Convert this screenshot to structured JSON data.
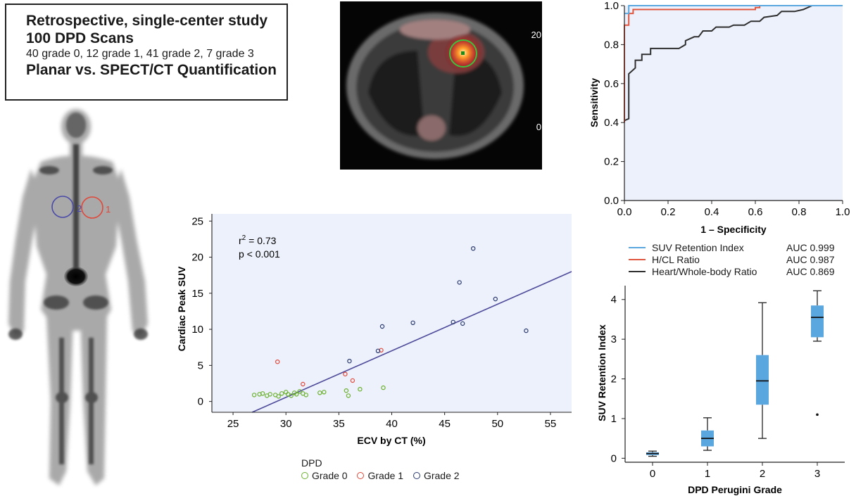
{
  "summary": {
    "line1": "Retrospective, single-center study",
    "line2": "100 DPD Scans",
    "line3": "40 grade 0, 12 grade 1, 41 grade 2, 7 grade 3",
    "line4": "Planar vs. SPECT/CT Quantification"
  },
  "bone_scan": {
    "roi_labels": [
      "2",
      "1"
    ],
    "roi_colors": [
      "#4a4aa8",
      "#e0483a"
    ]
  },
  "ct_image": {
    "scale_max": "20",
    "scale_min": "0",
    "roi_color": "#3cc23c"
  },
  "chart_data": [
    {
      "type": "line",
      "ylabel": "Sensitivity",
      "xlabel": "1 – Specificity",
      "xlim": [
        0,
        1
      ],
      "ylim": [
        0,
        1
      ],
      "x_ticks": [
        "0.0",
        "0.2",
        "0.4",
        "0.6",
        "0.8",
        "1.0"
      ],
      "y_ticks": [
        "0.0",
        "0.2",
        "0.4",
        "0.6",
        "0.8",
        "1.0"
      ],
      "legend_placement": "below",
      "series": [
        {
          "name": "SUV Retention Index",
          "auc": "AUC 0.999",
          "color": "#5aa6df",
          "points": [
            [
              0,
              0.96
            ],
            [
              0.02,
              0.96
            ],
            [
              0.02,
              1.0
            ],
            [
              1,
              1.0
            ]
          ]
        },
        {
          "name": "H/CL Ratio",
          "auc": "AUC 0.987",
          "color": "#e0563e",
          "points": [
            [
              0,
              0.4
            ],
            [
              0,
              0.9
            ],
            [
              0.02,
              0.9
            ],
            [
              0.02,
              0.96
            ],
            [
              0.04,
              0.96
            ],
            [
              0.04,
              0.98
            ],
            [
              0.6,
              0.98
            ],
            [
              0.6,
              0.99
            ],
            [
              0.62,
              0.99
            ],
            [
              0.62,
              1.0
            ],
            [
              1,
              1.0
            ]
          ]
        },
        {
          "name": "Heart/Whole-body Ratio",
          "auc": "AUC 0.869",
          "color": "#2f2f2f",
          "points": [
            [
              0,
              0.41
            ],
            [
              0.02,
              0.42
            ],
            [
              0.02,
              0.65
            ],
            [
              0.04,
              0.67
            ],
            [
              0.05,
              0.68
            ],
            [
              0.05,
              0.72
            ],
            [
              0.08,
              0.72
            ],
            [
              0.08,
              0.75
            ],
            [
              0.12,
              0.75
            ],
            [
              0.12,
              0.78
            ],
            [
              0.25,
              0.78
            ],
            [
              0.28,
              0.8
            ],
            [
              0.28,
              0.82
            ],
            [
              0.32,
              0.84
            ],
            [
              0.34,
              0.84
            ],
            [
              0.36,
              0.87
            ],
            [
              0.4,
              0.87
            ],
            [
              0.42,
              0.89
            ],
            [
              0.48,
              0.89
            ],
            [
              0.5,
              0.9
            ],
            [
              0.55,
              0.9
            ],
            [
              0.58,
              0.92
            ],
            [
              0.62,
              0.92
            ],
            [
              0.64,
              0.94
            ],
            [
              0.7,
              0.95
            ],
            [
              0.72,
              0.97
            ],
            [
              0.78,
              0.97
            ],
            [
              0.82,
              0.98
            ],
            [
              0.86,
              1.0
            ],
            [
              1,
              1.0
            ]
          ]
        }
      ]
    },
    {
      "type": "scatter",
      "xlabel": "ECV by CT (%)",
      "ylabel": "Cardiac Peak SUV",
      "xlim": [
        23,
        57
      ],
      "ylim": [
        -1.5,
        26
      ],
      "x_ticks": [
        25,
        30,
        35,
        40,
        45,
        50,
        55
      ],
      "y_ticks": [
        0,
        5,
        10,
        15,
        20,
        25
      ],
      "annotation_r2": "r2 = 0.73",
      "annotation_p": "p < 0.001",
      "legend_title": "DPD",
      "legend_placement": "bottom",
      "regression": {
        "x": [
          26.8,
          57
        ],
        "y": [
          -1.5,
          18
        ]
      },
      "series": [
        {
          "name": "Grade 0",
          "color": "#6ab02d",
          "points": [
            [
              27,
              0.9
            ],
            [
              27.5,
              1.0
            ],
            [
              27.8,
              1.1
            ],
            [
              28.2,
              0.8
            ],
            [
              28.5,
              1.0
            ],
            [
              29,
              0.9
            ],
            [
              29.3,
              0.7
            ],
            [
              29.6,
              1.1
            ],
            [
              30,
              1.3
            ],
            [
              30.2,
              1.0
            ],
            [
              30.5,
              0.8
            ],
            [
              30.8,
              1.2
            ],
            [
              31,
              1.0
            ],
            [
              31.3,
              1.4
            ],
            [
              31.6,
              1.1
            ],
            [
              31.9,
              0.9
            ],
            [
              33.2,
              1.2
            ],
            [
              33.6,
              1.3
            ],
            [
              35.7,
              1.5
            ],
            [
              35.9,
              0.8
            ],
            [
              37,
              1.7
            ],
            [
              39.2,
              1.9
            ]
          ]
        },
        {
          "name": "Grade 1",
          "color": "#e0483a",
          "points": [
            [
              29.2,
              5.5
            ],
            [
              31.6,
              2.4
            ],
            [
              35.6,
              3.8
            ],
            [
              36.3,
              2.9
            ],
            [
              39,
              7.1
            ]
          ]
        },
        {
          "name": "Grade 2",
          "color": "#2a3a6e",
          "points": [
            [
              36,
              5.6
            ],
            [
              38.7,
              7.0
            ],
            [
              39.1,
              10.4
            ],
            [
              42,
              10.9
            ],
            [
              45.8,
              11.0
            ],
            [
              46.4,
              16.5
            ],
            [
              46.7,
              10.8
            ],
            [
              47.7,
              21.2
            ],
            [
              49.8,
              14.2
            ],
            [
              52.7,
              9.8
            ]
          ]
        }
      ]
    },
    {
      "type": "box",
      "xlabel": "DPD Perugini Grade",
      "ylabel": "SUV Retention Index",
      "xlim": [
        -0.5,
        3.5
      ],
      "ylim": [
        -0.1,
        4.35
      ],
      "categories": [
        "0",
        "1",
        "2",
        "3"
      ],
      "y_ticks": [
        0,
        1,
        2,
        3,
        4
      ],
      "box_color": "#5aa6df",
      "boxes": [
        {
          "min": 0.05,
          "q1": 0.08,
          "median": 0.12,
          "q3": 0.15,
          "max": 0.18,
          "outliers": []
        },
        {
          "min": 0.2,
          "q1": 0.3,
          "median": 0.5,
          "q3": 0.7,
          "max": 1.02,
          "outliers": []
        },
        {
          "min": 0.5,
          "q1": 1.35,
          "median": 1.95,
          "q3": 2.6,
          "max": 3.92,
          "outliers": []
        },
        {
          "min": 2.95,
          "q1": 3.05,
          "median": 3.55,
          "q3": 3.85,
          "max": 4.22,
          "outliers": [
            1.1
          ]
        }
      ]
    }
  ]
}
